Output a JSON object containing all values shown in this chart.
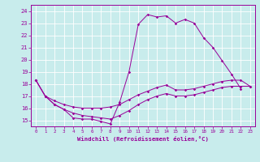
{
  "xlabel": "Windchill (Refroidissement éolien,°C)",
  "bg_color": "#c8ecec",
  "line_color": "#990099",
  "grid_color": "#ffffff",
  "xlim": [
    -0.5,
    23.5
  ],
  "ylim": [
    14.5,
    24.5
  ],
  "yticks": [
    15,
    16,
    17,
    18,
    19,
    20,
    21,
    22,
    23,
    24
  ],
  "xticks": [
    0,
    1,
    2,
    3,
    4,
    5,
    6,
    7,
    8,
    9,
    10,
    11,
    12,
    13,
    14,
    15,
    16,
    17,
    18,
    19,
    20,
    21,
    22,
    23
  ],
  "line1_x": [
    0,
    1,
    2,
    3,
    4,
    5,
    6,
    7,
    8,
    9,
    10,
    11,
    12,
    13,
    14,
    15,
    16,
    17,
    18,
    19,
    20,
    21,
    22
  ],
  "line1_y": [
    18.3,
    17.0,
    16.3,
    15.9,
    15.2,
    15.1,
    15.1,
    14.9,
    14.7,
    16.5,
    19.0,
    22.9,
    23.7,
    23.5,
    23.6,
    23.0,
    23.3,
    23.0,
    21.8,
    21.0,
    19.9,
    18.8,
    17.6
  ],
  "line2_x": [
    0,
    1,
    2,
    3,
    4,
    5,
    6,
    7,
    8,
    9,
    10,
    11,
    12,
    13,
    14,
    15,
    16,
    17,
    18,
    19,
    20,
    21,
    22,
    23
  ],
  "line2_y": [
    18.3,
    17.0,
    16.6,
    16.3,
    16.1,
    16.0,
    16.0,
    16.0,
    16.1,
    16.3,
    16.7,
    17.1,
    17.4,
    17.7,
    17.9,
    17.5,
    17.5,
    17.6,
    17.8,
    18.0,
    18.2,
    18.3,
    18.3,
    17.8
  ],
  "line3_x": [
    0,
    1,
    2,
    3,
    4,
    5,
    6,
    7,
    8,
    9,
    10,
    11,
    12,
    13,
    14,
    15,
    16,
    17,
    18,
    19,
    20,
    21,
    22,
    23
  ],
  "line3_y": [
    18.3,
    17.0,
    16.3,
    15.9,
    15.6,
    15.4,
    15.3,
    15.2,
    15.1,
    15.4,
    15.8,
    16.3,
    16.7,
    17.0,
    17.2,
    17.0,
    17.0,
    17.1,
    17.3,
    17.5,
    17.7,
    17.8,
    17.8,
    17.8
  ]
}
